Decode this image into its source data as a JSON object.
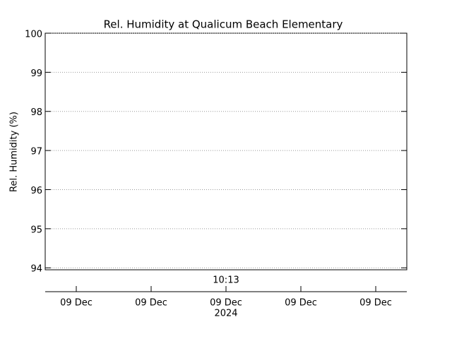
{
  "chart_data": {
    "type": "line",
    "title": "Rel. Humidity at Qualicum Beach Elementary",
    "ylabel": "Rel. Humidity (%)",
    "ylim": [
      93.95,
      100
    ],
    "yticks": [
      94,
      95,
      96,
      97,
      98,
      99,
      100
    ],
    "grid": true,
    "categories": [
      "09 Dec",
      "09 Dec",
      "09 Dec",
      "09 Dec",
      "09 Dec"
    ],
    "x_annotation": "10:13",
    "x_year": "2024",
    "color": "#000000"
  }
}
